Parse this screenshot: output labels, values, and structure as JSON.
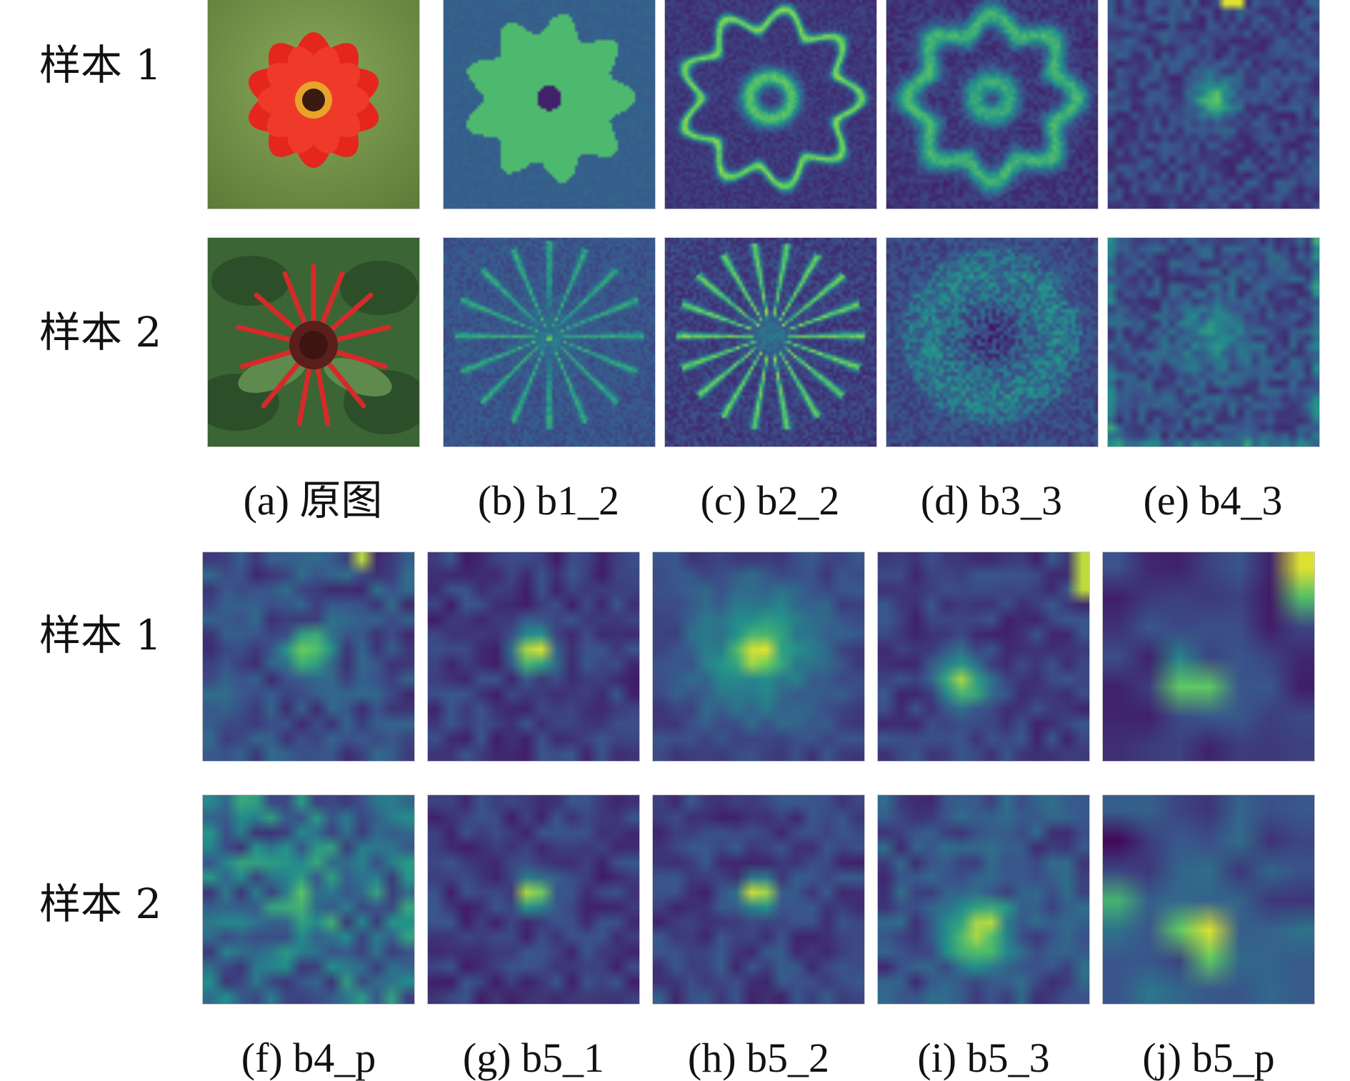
{
  "row_labels": {
    "top_sample_1": "样本 1",
    "top_sample_2": "样本 2",
    "bottom_sample_1": "样本 1",
    "bottom_sample_2": "样本 2"
  },
  "captions": {
    "a": "(a) 原图",
    "b": "(b) b1_2",
    "c": "(c) b2_2",
    "d": "(d) b3_3",
    "e": "(e) b4_3",
    "f": "(f) b4_p",
    "g": "(g) b5_1",
    "h": "(h) b5_2",
    "i": "(i) b5_3",
    "j": "(j) b5_p"
  },
  "colormap": [
    "#440154",
    "#3b528b",
    "#21918c",
    "#5ec962",
    "#fde725"
  ],
  "photos": {
    "sample_1": {
      "subject": "red dahlia-like flower on green background",
      "petal_color": "#e8281e",
      "background_color": "#7a9a4a"
    },
    "sample_2": {
      "subject": "red bee balm flower among green leaves",
      "petal_color": "#d62a2a",
      "background_color": "#3f6b38"
    }
  }
}
